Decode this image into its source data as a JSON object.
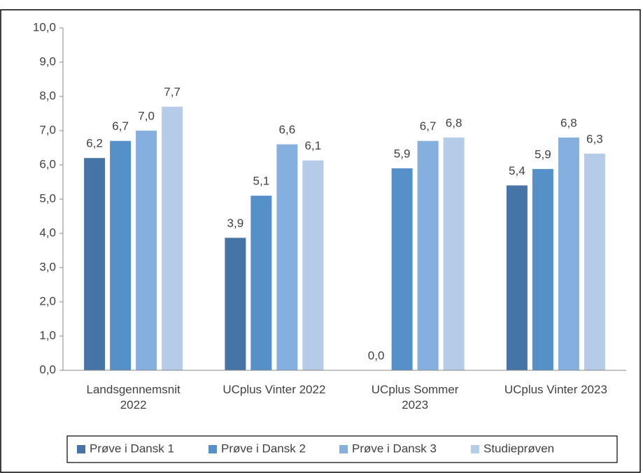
{
  "chart_data": {
    "type": "bar",
    "categories": [
      "Landsgennemsnit 2022",
      "UCplus Vinter 2022",
      "UCplus Sommer 2023",
      "UCplus Vinter 2023"
    ],
    "series": [
      {
        "name": "Prøve i Dansk 1",
        "color": "#4674a6",
        "values": [
          6.2,
          3.87,
          0,
          5.4
        ],
        "value_labels": [
          "6,2",
          "3,9",
          "0,0",
          "5,4"
        ]
      },
      {
        "name": "Prøve i Dansk 2",
        "color": "#5590c9",
        "values": [
          6.7,
          5.1,
          5.9,
          5.88
        ],
        "value_labels": [
          "6,7",
          "5,1",
          "5,9",
          "5,9"
        ]
      },
      {
        "name": "Prøve i Dansk 3",
        "color": "#84afde",
        "values": [
          7.0,
          6.6,
          6.7,
          6.8
        ],
        "value_labels": [
          "7,0",
          "6,6",
          "6,7",
          "6,8"
        ]
      },
      {
        "name": "Studieprøven",
        "color": "#b5cbe8",
        "values": [
          7.7,
          6.13,
          6.8,
          6.33
        ],
        "value_labels": [
          "7,7",
          "6,1",
          "6,8",
          "6,3"
        ]
      }
    ],
    "ylim": [
      0,
      10
    ],
    "yticks": [
      {
        "value": 0,
        "label": "0,0"
      },
      {
        "value": 1,
        "label": "1,0"
      },
      {
        "value": 2,
        "label": "2,0"
      },
      {
        "value": 3,
        "label": "3,0"
      },
      {
        "value": 4,
        "label": "4,0"
      },
      {
        "value": 5,
        "label": "5,0"
      },
      {
        "value": 6,
        "label": "6,0"
      },
      {
        "value": 7,
        "label": "7,0"
      },
      {
        "value": 8,
        "label": "8,0"
      },
      {
        "value": 9,
        "label": "9,0"
      },
      {
        "value": 10,
        "label": "10,0"
      }
    ],
    "grid": false,
    "legend": "bottom"
  }
}
